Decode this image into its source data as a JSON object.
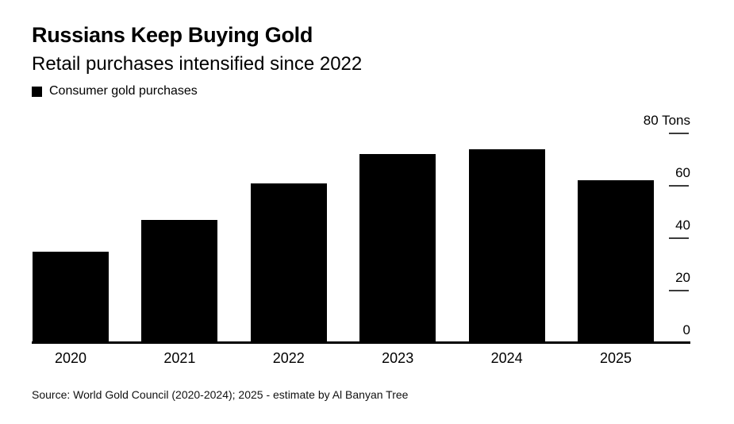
{
  "header": {
    "title": "Russians Keep Buying Gold",
    "subtitle": "Retail purchases intensified since 2022"
  },
  "legend": {
    "label": "Consumer gold purchases",
    "swatch_color": "#000000"
  },
  "chart_data": {
    "type": "bar",
    "title": "Russians Keep Buying Gold",
    "subtitle": "Retail purchases intensified since 2022",
    "legend_entries": [
      "Consumer gold purchases"
    ],
    "legend_position": "top-left",
    "categories": [
      "2020",
      "2021",
      "2022",
      "2023",
      "2024",
      "2025"
    ],
    "values": [
      35,
      47,
      61,
      72,
      74,
      62
    ],
    "ylabel": "Tons",
    "y_axis_top_label": "80 Tons",
    "ylim": [
      0,
      80
    ],
    "yticks": [
      0,
      20,
      40,
      60,
      80
    ],
    "y_axis_side": "right",
    "grid": false,
    "bar_color": "#000000",
    "background_color": "#ffffff"
  },
  "source": "Source: World Gold Council (2020-2024); 2025 - estimate by Al Banyan Tree"
}
